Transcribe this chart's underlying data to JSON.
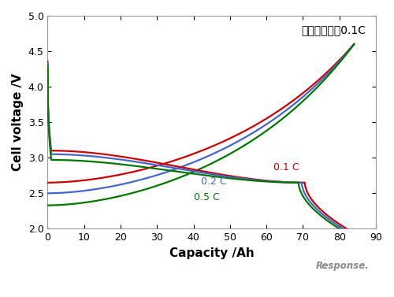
{
  "title_annotation": "充電レート：0.1C",
  "xlabel": "Capacity /Ah",
  "ylabel": "Cell voltage /V",
  "xlim": [
    0,
    90
  ],
  "ylim": [
    2.0,
    5.0
  ],
  "xticks": [
    0,
    10,
    20,
    30,
    40,
    50,
    60,
    70,
    80,
    90
  ],
  "yticks": [
    2.0,
    2.5,
    3.0,
    3.5,
    4.0,
    4.5,
    5.0
  ],
  "colors": {
    "c01": "#cc0000",
    "c02": "#4466cc",
    "c05": "#007700"
  },
  "label_01": "0.1 C",
  "label_02": "0.2 C",
  "label_05": "0.5 C",
  "label_color_01": "#cc0000",
  "label_color_02": "#4466cc",
  "label_color_05": "#007700",
  "background_color": "#ffffff",
  "charge_end_x_01": 84,
  "charge_end_x_02": 84,
  "charge_end_x_05": 84,
  "discharge_end_x_01": 82,
  "discharge_end_x_02": 81,
  "discharge_end_x_05": 80,
  "discharge_start_v_01": 4.35,
  "discharge_start_v_02": 4.33,
  "discharge_start_v_05": 4.3,
  "discharge_plateau_v_01": 3.1,
  "discharge_plateau_v_02": 3.05,
  "discharge_plateau_v_05": 2.97,
  "charge_start_v_01": 2.65,
  "charge_start_v_02": 2.5,
  "charge_start_v_05": 2.33,
  "charge_end_v": 4.6
}
